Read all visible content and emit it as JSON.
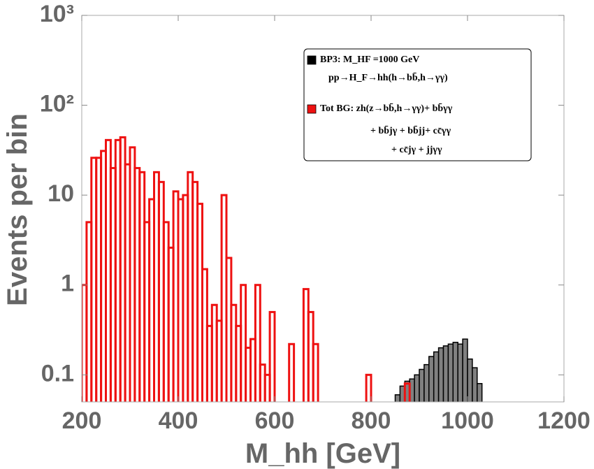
{
  "chart_data": {
    "type": "histogram",
    "x_label": "M_hh [GeV]",
    "y_label": "Events per bin",
    "xlim": [
      200,
      1200
    ],
    "xticks": [
      200,
      400,
      600,
      800,
      1000,
      1200
    ],
    "ylim": [
      0.05,
      1000
    ],
    "yticks": [
      0.1,
      1,
      10,
      {
        "value": 100,
        "label": "10²"
      },
      {
        "value": 1000,
        "label": "10³"
      }
    ],
    "log_y": true,
    "legend_position": "upper right",
    "series": [
      {
        "name": "BP3: M_HF =1000 GeV",
        "legend_lines": [
          "pp→H_F→hh(h→bb̄,h→γγ)"
        ],
        "color": "#000000",
        "fill": "#808080",
        "bins": [
          850,
          860,
          870,
          880,
          890,
          900,
          910,
          920,
          930,
          940,
          950,
          960,
          970,
          980,
          990,
          1000,
          1010,
          1020,
          1030
        ],
        "values": [
          0.06,
          0.075,
          0.085,
          0.09,
          0.1,
          0.115,
          0.13,
          0.16,
          0.18,
          0.2,
          0.21,
          0.22,
          0.23,
          0.22,
          0.25,
          0.15,
          0.12,
          0.08
        ]
      },
      {
        "name": "Tot BG: zh(z→bb̄,h→γγ)+ bb̄γγ",
        "legend_lines": [
          "+ bb̄jγ + bb̄jj+ cc̄γγ",
          "+ cc̄jγ + jjγγ"
        ],
        "color": "#ee1111",
        "fill": "none",
        "bins": [
          200,
          210,
          220,
          230,
          240,
          250,
          260,
          270,
          280,
          290,
          300,
          310,
          320,
          330,
          340,
          350,
          360,
          370,
          380,
          390,
          400,
          410,
          420,
          430,
          440,
          450,
          460,
          470,
          480,
          490,
          500,
          510,
          520,
          530,
          540,
          550,
          560,
          570,
          580,
          590,
          600,
          610,
          620,
          630,
          640,
          650,
          660,
          670,
          680,
          690,
          700,
          710,
          720,
          730,
          740,
          750,
          760,
          770,
          780,
          790,
          800,
          810,
          820,
          830,
          840,
          850,
          860,
          870,
          880
        ],
        "values": [
          1,
          5,
          26,
          26,
          31,
          41,
          20,
          41,
          44,
          22,
          34,
          20,
          18,
          5,
          9,
          18,
          14,
          5,
          2.6,
          11,
          9,
          10,
          18,
          14,
          8,
          1.5,
          0.35,
          0.6,
          0.4,
          10,
          2,
          0.6,
          0.35,
          1,
          0.2,
          0.25,
          1,
          0.13,
          0.1,
          0.5,
          null,
          null,
          null,
          0.22,
          null,
          null,
          0.9,
          0.5,
          0.22,
          null,
          null,
          null,
          null,
          null,
          null,
          null,
          null,
          null,
          null,
          0.1,
          null,
          null,
          null,
          null,
          null,
          null,
          null,
          0.08
        ]
      }
    ]
  }
}
